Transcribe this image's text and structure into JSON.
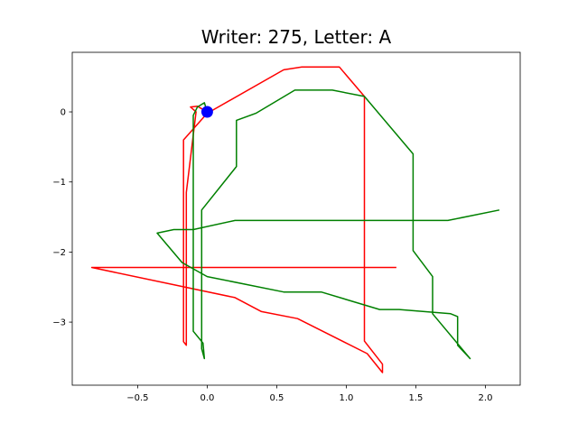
{
  "chart_data": {
    "type": "line",
    "title": "Writer: 275, Letter: A",
    "xlabel": "",
    "ylabel": "",
    "xlim": [
      -0.97,
      2.25
    ],
    "ylim": [
      -3.9,
      0.85
    ],
    "xticks": [
      -0.5,
      0.0,
      0.5,
      1.0,
      1.5,
      2.0
    ],
    "yticks": [
      0,
      -1,
      -2,
      -3
    ],
    "xtick_labels": [
      "−0.5",
      "0.0",
      "0.5",
      "1.0",
      "1.5",
      "2.0"
    ],
    "ytick_labels": [
      "0",
      "−1",
      "−2",
      "−3"
    ],
    "grid": false,
    "legend": "none",
    "series": [
      {
        "color": "#ff0000",
        "points": [
          [
            0.0,
            0.0
          ],
          [
            -0.07,
            0.08
          ],
          [
            -0.12,
            0.07
          ],
          [
            -0.08,
            0.0
          ],
          [
            -0.15,
            -1.15
          ],
          [
            -0.15,
            -3.33
          ],
          [
            -0.17,
            -3.28
          ],
          [
            -0.17,
            -0.4
          ],
          [
            0.0,
            -0.02
          ],
          [
            0.55,
            0.6
          ],
          [
            0.68,
            0.64
          ],
          [
            0.95,
            0.64
          ],
          [
            1.13,
            0.22
          ],
          [
            1.13,
            -3.27
          ],
          [
            1.26,
            -3.6
          ],
          [
            1.26,
            -3.72
          ],
          [
            1.15,
            -3.45
          ],
          [
            0.65,
            -2.95
          ],
          [
            0.39,
            -2.85
          ],
          [
            0.2,
            -2.65
          ],
          [
            -0.83,
            -2.22
          ],
          [
            1.36,
            -2.22
          ]
        ]
      },
      {
        "color": "#008000",
        "points": [
          [
            0.0,
            0.0
          ],
          [
            -0.02,
            0.13
          ],
          [
            -0.07,
            0.07
          ],
          [
            -0.1,
            -0.05
          ],
          [
            -0.1,
            -3.13
          ],
          [
            -0.03,
            -3.3
          ],
          [
            -0.02,
            -3.52
          ],
          [
            -0.04,
            -3.38
          ],
          [
            -0.04,
            -1.4
          ],
          [
            0.21,
            -0.78
          ],
          [
            0.21,
            -0.12
          ],
          [
            0.35,
            -0.02
          ],
          [
            0.63,
            0.31
          ],
          [
            0.9,
            0.31
          ],
          [
            1.13,
            0.22
          ],
          [
            1.48,
            -0.6
          ],
          [
            1.48,
            -1.98
          ],
          [
            1.62,
            -2.35
          ],
          [
            1.62,
            -2.88
          ],
          [
            1.89,
            -3.52
          ],
          [
            1.8,
            -3.33
          ],
          [
            1.8,
            -2.92
          ],
          [
            1.75,
            -2.88
          ],
          [
            1.38,
            -2.82
          ],
          [
            1.24,
            -2.82
          ],
          [
            0.82,
            -2.57
          ],
          [
            0.55,
            -2.57
          ],
          [
            0.0,
            -2.35
          ],
          [
            -0.18,
            -2.15
          ],
          [
            -0.36,
            -1.73
          ],
          [
            -0.24,
            -1.68
          ],
          [
            -0.1,
            -1.68
          ],
          [
            0.2,
            -1.55
          ],
          [
            1.73,
            -1.55
          ],
          [
            2.1,
            -1.4
          ]
        ]
      }
    ],
    "start_marker": {
      "x": 0.0,
      "y": 0.0,
      "color": "#0000ff"
    }
  }
}
